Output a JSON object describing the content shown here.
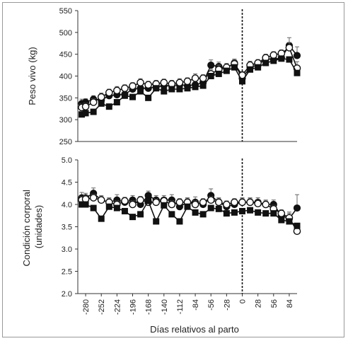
{
  "chart_data": [
    {
      "type": "line",
      "ylabel": "Peso vivo (kg)",
      "ylim": [
        250,
        550
      ],
      "yticks": [
        250,
        300,
        350,
        400,
        450,
        500,
        550
      ],
      "xlim": [
        -294,
        98
      ],
      "grid": false,
      "vline_x": 0,
      "series": [
        {
          "marker": "filled-circle",
          "x": [
            -287,
            -280,
            -266,
            -252,
            -238,
            -224,
            -210,
            -196,
            -182,
            -168,
            -154,
            -140,
            -126,
            -112,
            -98,
            -84,
            -70,
            -56,
            -42,
            -28,
            -14,
            0,
            14,
            28,
            42,
            56,
            70,
            84,
            98
          ],
          "values": [
            337,
            340,
            347,
            345,
            355,
            357,
            358,
            370,
            372,
            372,
            375,
            378,
            378,
            380,
            378,
            380,
            385,
            425,
            422,
            418,
            430,
            395,
            420,
            425,
            440,
            438,
            442,
            470,
            447
          ],
          "errors": [
            10,
            8,
            8,
            9,
            8,
            9,
            8,
            8,
            9,
            8,
            8,
            8,
            8,
            9,
            8,
            12,
            8,
            12,
            10,
            9,
            9,
            8,
            9,
            8,
            8,
            8,
            8,
            18,
            20
          ]
        },
        {
          "marker": "open-circle",
          "x": [
            -287,
            -280,
            -266,
            -252,
            -238,
            -224,
            -210,
            -196,
            -182,
            -168,
            -154,
            -140,
            -126,
            -112,
            -98,
            -84,
            -70,
            -56,
            -42,
            -28,
            -14,
            0,
            14,
            28,
            42,
            56,
            70,
            84,
            98
          ],
          "values": [
            328,
            330,
            340,
            352,
            362,
            367,
            372,
            377,
            385,
            380,
            382,
            385,
            382,
            385,
            388,
            395,
            395,
            405,
            415,
            420,
            428,
            402,
            425,
            430,
            442,
            448,
            452,
            465,
            418
          ],
          "errors": [
            8,
            8,
            8,
            9,
            8,
            9,
            8,
            8,
            9,
            8,
            8,
            8,
            8,
            9,
            8,
            10,
            8,
            10,
            10,
            9,
            9,
            8,
            9,
            8,
            8,
            8,
            8,
            12,
            15
          ]
        },
        {
          "marker": "filled-square",
          "x": [
            -287,
            -280,
            -266,
            -252,
            -238,
            -224,
            -210,
            -196,
            -182,
            -168,
            -154,
            -140,
            -126,
            -112,
            -98,
            -84,
            -70,
            -56,
            -42,
            -28,
            -14,
            0,
            14,
            28,
            42,
            56,
            70,
            84,
            98
          ],
          "values": [
            312,
            315,
            318,
            337,
            330,
            340,
            355,
            352,
            365,
            350,
            372,
            365,
            370,
            370,
            372,
            375,
            378,
            400,
            405,
            412,
            420,
            388,
            415,
            420,
            430,
            435,
            440,
            438,
            407
          ],
          "errors": [
            5,
            5,
            5,
            5,
            5,
            5,
            5,
            5,
            5,
            5,
            5,
            5,
            5,
            5,
            5,
            5,
            5,
            5,
            5,
            5,
            5,
            5,
            5,
            5,
            5,
            5,
            5,
            5,
            5
          ]
        }
      ]
    },
    {
      "type": "line",
      "ylabel": "Condición corporal (unidades)",
      "ylabel_lines": [
        "Condición corporal",
        "(unidades)"
      ],
      "ylim": [
        2.0,
        5.0
      ],
      "yticks": [
        "2.0",
        "2.5",
        "3.0",
        "3.5",
        "4.0",
        "4.5",
        "5.0"
      ],
      "xlabel": "Días relativos al parto",
      "xlim": [
        -294,
        98
      ],
      "xticks": [
        "-280",
        "-252",
        "-224",
        "-196",
        "-168",
        "-140",
        "-112",
        "-84",
        "-56",
        "-28",
        "0",
        "28",
        "56",
        "84"
      ],
      "grid": false,
      "vline_x": 0,
      "series": [
        {
          "marker": "filled-circle",
          "x": [
            -287,
            -280,
            -266,
            -252,
            -238,
            -224,
            -210,
            -196,
            -182,
            -168,
            -154,
            -140,
            -126,
            -112,
            -98,
            -84,
            -70,
            -56,
            -42,
            -28,
            -14,
            0,
            14,
            28,
            42,
            56,
            70,
            84,
            98
          ],
          "values": [
            4.15,
            4.15,
            4.25,
            4.1,
            4.05,
            4.1,
            4.05,
            4.1,
            4.0,
            4.2,
            4.1,
            4.1,
            4.1,
            3.95,
            4.05,
            4.05,
            4.0,
            4.2,
            4.05,
            3.95,
            4.0,
            4.05,
            4.05,
            4.05,
            4.0,
            4.0,
            3.75,
            3.68,
            3.92
          ],
          "errors": [
            0.12,
            0.1,
            0.12,
            0.1,
            0.1,
            0.12,
            0.1,
            0.1,
            0.12,
            0.1,
            0.1,
            0.1,
            0.12,
            0.1,
            0.1,
            0.12,
            0.1,
            0.15,
            0.1,
            0.1,
            0.1,
            0.1,
            0.1,
            0.1,
            0.1,
            0.1,
            0.1,
            0.15,
            0.3
          ]
        },
        {
          "marker": "open-circle",
          "x": [
            -287,
            -280,
            -266,
            -252,
            -238,
            -224,
            -210,
            -196,
            -182,
            -168,
            -154,
            -140,
            -126,
            -112,
            -98,
            -84,
            -70,
            -56,
            -42,
            -28,
            -14,
            0,
            14,
            28,
            42,
            56,
            70,
            84,
            98
          ],
          "values": [
            4.1,
            4.12,
            4.15,
            4.1,
            4.05,
            4.0,
            4.08,
            4.0,
            4.1,
            4.05,
            4.05,
            4.08,
            4.0,
            4.05,
            4.05,
            4.0,
            4.05,
            4.1,
            4.05,
            4.0,
            4.05,
            4.05,
            4.05,
            4.02,
            4.0,
            3.9,
            3.8,
            3.7,
            3.4
          ],
          "errors": [
            0.08,
            0.08,
            0.08,
            0.08,
            0.08,
            0.08,
            0.08,
            0.08,
            0.08,
            0.08,
            0.08,
            0.08,
            0.08,
            0.08,
            0.08,
            0.08,
            0.08,
            0.08,
            0.08,
            0.08,
            0.08,
            0.08,
            0.08,
            0.08,
            0.08,
            0.08,
            0.08,
            0.1,
            0.12
          ]
        },
        {
          "marker": "filled-square",
          "x": [
            -287,
            -280,
            -266,
            -252,
            -238,
            -224,
            -210,
            -196,
            -182,
            -168,
            -154,
            -140,
            -126,
            -112,
            -98,
            -84,
            -70,
            -56,
            -42,
            -28,
            -14,
            0,
            14,
            28,
            42,
            56,
            70,
            84,
            98
          ],
          "values": [
            4.0,
            4.0,
            3.92,
            3.68,
            3.95,
            3.92,
            3.85,
            3.72,
            3.78,
            4.08,
            3.62,
            3.98,
            3.78,
            3.62,
            3.95,
            3.82,
            3.78,
            3.92,
            3.9,
            3.8,
            3.82,
            3.85,
            3.87,
            3.82,
            3.8,
            3.8,
            3.65,
            3.62,
            3.52
          ],
          "errors": [
            0.05,
            0.05,
            0.05,
            0.05,
            0.05,
            0.05,
            0.05,
            0.05,
            0.05,
            0.05,
            0.05,
            0.05,
            0.05,
            0.05,
            0.05,
            0.05,
            0.05,
            0.05,
            0.05,
            0.05,
            0.05,
            0.05,
            0.05,
            0.05,
            0.05,
            0.05,
            0.05,
            0.05,
            0.05
          ]
        }
      ]
    }
  ]
}
